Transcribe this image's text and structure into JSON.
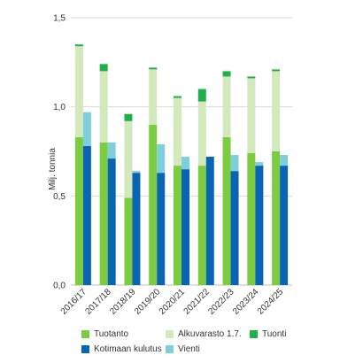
{
  "chart_data": {
    "type": "bar",
    "ylabel": "Milj. tonnia",
    "ylim": [
      0,
      1.5
    ],
    "yticks": [
      0,
      0.5,
      1.0,
      1.5
    ],
    "ytick_labels": [
      "0,0",
      "0,5",
      "1,0",
      "1,5"
    ],
    "grid": true,
    "legend_position": "bottom",
    "categories": [
      "2016/17",
      "2017/18",
      "2018/19",
      "2019/20",
      "2020/21",
      "2021/22",
      "2022/23",
      "2023/24",
      "2024/25"
    ],
    "stacked_series": [
      {
        "name": "Tuotanto",
        "color": "#7ccc3f",
        "stack": "supply",
        "values": [
          0.83,
          0.8,
          0.49,
          0.9,
          0.67,
          0.67,
          0.83,
          0.74,
          0.75
        ]
      },
      {
        "name": "Alkuvarasto 1.7.",
        "color": "#d4e8bd",
        "stack": "supply",
        "values": [
          0.51,
          0.4,
          0.43,
          0.31,
          0.38,
          0.36,
          0.34,
          0.42,
          0.45
        ]
      },
      {
        "name": "Tuonti",
        "color": "#1fb04a",
        "stack": "supply",
        "values": [
          0.01,
          0.04,
          0.04,
          0.01,
          0.01,
          0.07,
          0.03,
          0.01,
          0.01
        ]
      },
      {
        "name": "Kotimaan kulutus",
        "color": "#0a64b4",
        "stack": "use",
        "values": [
          0.78,
          0.71,
          0.63,
          0.63,
          0.65,
          0.72,
          0.64,
          0.67,
          0.67
        ]
      },
      {
        "name": "Vienti",
        "color": "#7fcfdb",
        "stack": "use",
        "values": [
          0.19,
          0.09,
          0.01,
          0.16,
          0.07,
          0.0,
          0.09,
          0.02,
          0.06
        ]
      }
    ]
  }
}
